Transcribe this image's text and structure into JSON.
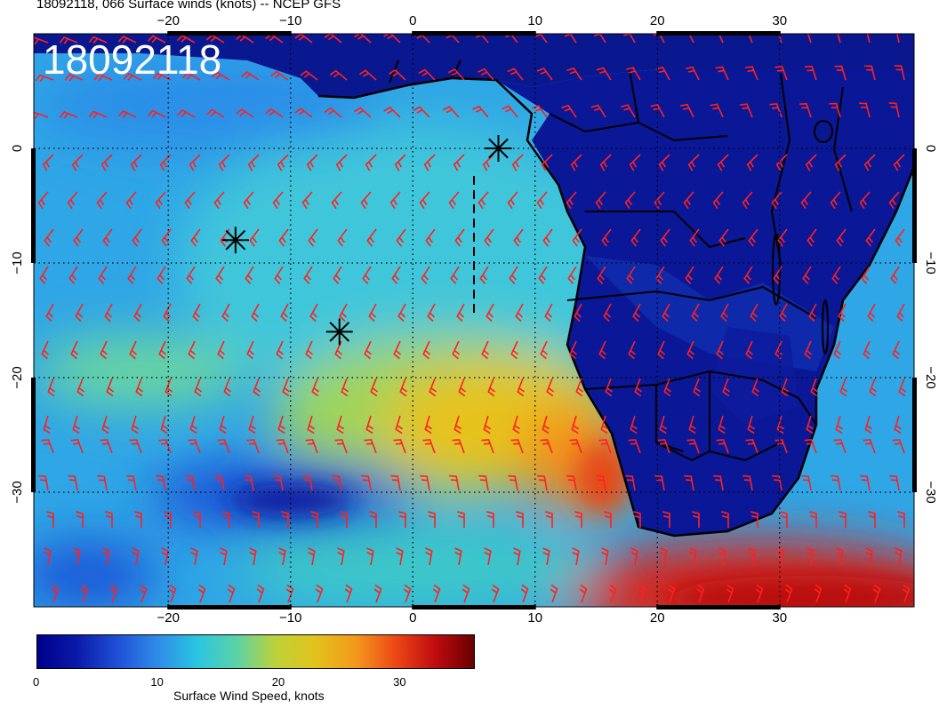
{
  "title": "18092118, 066 Surface winds (knots) -- NCEP GFS",
  "stamp": "18092118",
  "map": {
    "lon_range": [
      -31,
      41
    ],
    "lat_range": [
      -40,
      10
    ],
    "lon_ticks": [
      -20,
      -10,
      0,
      10,
      20,
      30
    ],
    "lat_ticks": [
      0,
      -10,
      -20,
      -30
    ],
    "lon_tick_labels": [
      "−20",
      "−10",
      "0",
      "10",
      "20",
      "30"
    ],
    "lat_tick_labels": [
      "0",
      "−10",
      "−20",
      "−30"
    ],
    "markers": [
      {
        "name": "star",
        "lon": 7,
        "lat": 0
      },
      {
        "name": "star",
        "lon": -14.5,
        "lat": -8
      },
      {
        "name": "star",
        "lon": -6,
        "lat": -16
      }
    ],
    "barb_color": "#ff2020"
  },
  "colorbar": {
    "label": "Surface Wind Speed, knots",
    "tick_labels": [
      "0",
      "10",
      "20",
      "30"
    ],
    "ticks": [
      0,
      10,
      20,
      30
    ],
    "max": 36,
    "colors": [
      "#00008b",
      "#0a1aa8",
      "#1f4fd6",
      "#2f8ae8",
      "#29c4e2",
      "#5ad2a8",
      "#bcd23a",
      "#e2c21c",
      "#f29a1c",
      "#ee4a16",
      "#c00c10",
      "#6a0000"
    ]
  }
}
